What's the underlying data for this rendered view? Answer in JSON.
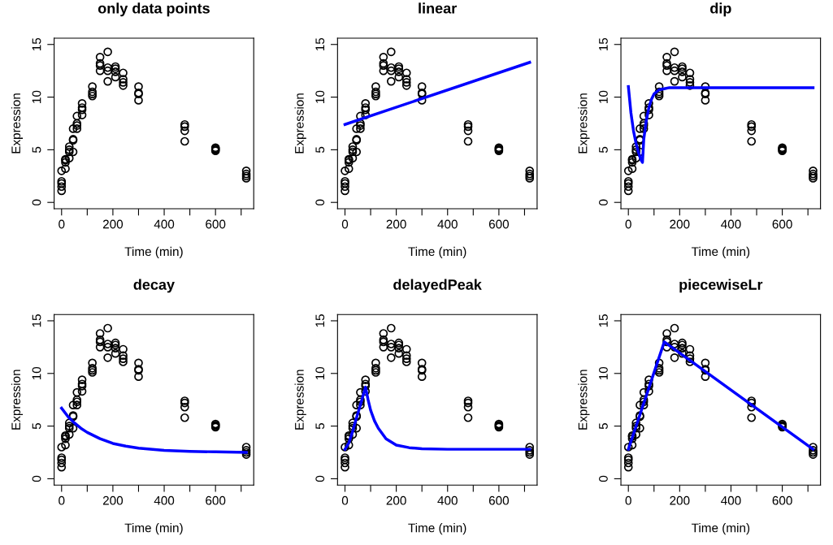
{
  "chart_data": [
    {
      "type": "scatter",
      "title": "only data points",
      "xlabel": "Time (min)",
      "ylabel": "Expression",
      "xlim": [
        -29,
        749
      ],
      "ylim": [
        -0.6,
        15.6
      ],
      "xticks": [
        0,
        {
          "value": 100,
          "label": null
        },
        200,
        {
          "value": 300,
          "label": null
        },
        400,
        {
          "value": 500,
          "label": null
        },
        600,
        {
          "value": 700,
          "label": null
        }
      ],
      "yticks": [
        0,
        5,
        10,
        15
      ],
      "grid": false,
      "series": [
        {
          "type": "scatter",
          "marker": "circle",
          "color": "#000000",
          "x": [
            0,
            0,
            0,
            0,
            0,
            15,
            15,
            15,
            15,
            30,
            30,
            30,
            30,
            45,
            45,
            45,
            45,
            60,
            60,
            60,
            60,
            80,
            80,
            80,
            80,
            120,
            120,
            120,
            120,
            150,
            150,
            150,
            150,
            180,
            180,
            180,
            180,
            210,
            210,
            210,
            210,
            240,
            240,
            240,
            240,
            300,
            300,
            300,
            300,
            480,
            480,
            480,
            480,
            600,
            600,
            600,
            600,
            720,
            720,
            720,
            720
          ],
          "values": [
            1.1,
            1.5,
            1.8,
            2.0,
            3.0,
            3.2,
            3.8,
            4.0,
            4.1,
            4.2,
            4.8,
            5.0,
            5.3,
            4.8,
            5.9,
            6.0,
            7.0,
            7.0,
            7.3,
            7.5,
            8.2,
            8.3,
            8.8,
            9.0,
            9.4,
            10.1,
            10.3,
            10.5,
            11.0,
            12.5,
            13.0,
            13.2,
            13.8,
            11.5,
            12.5,
            12.8,
            14.3,
            11.9,
            12.4,
            12.7,
            12.9,
            11.1,
            11.4,
            11.7,
            12.3,
            9.7,
            10.3,
            10.4,
            11.0,
            5.8,
            6.8,
            7.2,
            7.4,
            4.9,
            5.0,
            5.1,
            5.2,
            2.3,
            2.5,
            2.7,
            3.0
          ]
        }
      ]
    },
    {
      "type": "scatter",
      "title": "linear",
      "xlabel": "Time (min)",
      "ylabel": "Expression",
      "xlim": [
        -29,
        749
      ],
      "ylim": [
        -0.6,
        15.6
      ],
      "xticks": [
        0,
        {
          "value": 100,
          "label": null
        },
        200,
        {
          "value": 300,
          "label": null
        },
        400,
        {
          "value": 500,
          "label": null
        },
        600,
        {
          "value": 700,
          "label": null
        }
      ],
      "yticks": [
        0,
        5,
        10,
        15
      ],
      "grid": false,
      "series": [
        {
          "type": "scatter",
          "marker": "circle",
          "color": "#000000",
          "x": [
            0,
            0,
            0,
            0,
            0,
            15,
            15,
            15,
            15,
            30,
            30,
            30,
            30,
            45,
            45,
            45,
            45,
            60,
            60,
            60,
            60,
            80,
            80,
            80,
            80,
            120,
            120,
            120,
            120,
            150,
            150,
            150,
            150,
            180,
            180,
            180,
            180,
            210,
            210,
            210,
            210,
            240,
            240,
            240,
            240,
            300,
            300,
            300,
            300,
            480,
            480,
            480,
            480,
            600,
            600,
            600,
            600,
            720,
            720,
            720,
            720
          ],
          "values": [
            1.1,
            1.5,
            1.8,
            2.0,
            3.0,
            3.2,
            3.8,
            4.0,
            4.1,
            4.2,
            4.8,
            5.0,
            5.3,
            4.8,
            5.9,
            6.0,
            7.0,
            7.0,
            7.3,
            7.5,
            8.2,
            8.3,
            8.8,
            9.0,
            9.4,
            10.1,
            10.3,
            10.5,
            11.0,
            12.5,
            13.0,
            13.2,
            13.8,
            11.5,
            12.5,
            12.8,
            14.3,
            11.9,
            12.4,
            12.7,
            12.9,
            11.1,
            11.4,
            11.7,
            12.3,
            9.7,
            10.3,
            10.4,
            11.0,
            5.8,
            6.8,
            7.2,
            7.4,
            4.9,
            5.0,
            5.1,
            5.2,
            2.3,
            2.5,
            2.7,
            3.0
          ]
        },
        {
          "type": "line",
          "color": "#0000ff",
          "x": [
            0,
            720
          ],
          "values": [
            7.4,
            13.3
          ]
        }
      ]
    },
    {
      "type": "scatter",
      "title": "dip",
      "xlabel": "Time (min)",
      "ylabel": "Expression",
      "xlim": [
        -29,
        749
      ],
      "ylim": [
        -0.6,
        15.6
      ],
      "xticks": [
        0,
        {
          "value": 100,
          "label": null
        },
        200,
        {
          "value": 300,
          "label": null
        },
        400,
        {
          "value": 500,
          "label": null
        },
        600,
        {
          "value": 700,
          "label": null
        }
      ],
      "yticks": [
        0,
        5,
        10,
        15
      ],
      "grid": false,
      "series": [
        {
          "type": "scatter",
          "marker": "circle",
          "color": "#000000",
          "x": [
            0,
            0,
            0,
            0,
            0,
            15,
            15,
            15,
            15,
            30,
            30,
            30,
            30,
            45,
            45,
            45,
            45,
            60,
            60,
            60,
            60,
            80,
            80,
            80,
            80,
            120,
            120,
            120,
            120,
            150,
            150,
            150,
            150,
            180,
            180,
            180,
            180,
            210,
            210,
            210,
            210,
            240,
            240,
            240,
            240,
            300,
            300,
            300,
            300,
            480,
            480,
            480,
            480,
            600,
            600,
            600,
            600,
            720,
            720,
            720,
            720
          ],
          "values": [
            1.1,
            1.5,
            1.8,
            2.0,
            3.0,
            3.2,
            3.8,
            4.0,
            4.1,
            4.2,
            4.8,
            5.0,
            5.3,
            4.8,
            5.9,
            6.0,
            7.0,
            7.0,
            7.3,
            7.5,
            8.2,
            8.3,
            8.8,
            9.0,
            9.4,
            10.1,
            10.3,
            10.5,
            11.0,
            12.5,
            13.0,
            13.2,
            13.8,
            11.5,
            12.5,
            12.8,
            14.3,
            11.9,
            12.4,
            12.7,
            12.9,
            11.1,
            11.4,
            11.7,
            12.3,
            9.7,
            10.3,
            10.4,
            11.0,
            5.8,
            6.8,
            7.2,
            7.4,
            4.9,
            5.0,
            5.1,
            5.2,
            2.3,
            2.5,
            2.7,
            3.0
          ]
        },
        {
          "type": "line",
          "color": "#0000ff",
          "x": [
            0,
            10,
            20,
            30,
            40,
            50,
            55,
            60,
            70,
            80,
            90,
            100,
            120,
            140,
            160,
            200,
            300,
            720
          ],
          "values": [
            11.0,
            8.5,
            6.8,
            5.6,
            4.7,
            4.0,
            3.8,
            6.0,
            7.8,
            9.0,
            9.8,
            10.3,
            10.7,
            10.8,
            10.9,
            10.9,
            10.9,
            10.9
          ]
        }
      ]
    },
    {
      "type": "scatter",
      "title": "decay",
      "xlabel": "Time (min)",
      "ylabel": "Expression",
      "xlim": [
        -29,
        749
      ],
      "ylim": [
        -0.6,
        15.6
      ],
      "xticks": [
        0,
        {
          "value": 100,
          "label": null
        },
        200,
        {
          "value": 300,
          "label": null
        },
        400,
        {
          "value": 500,
          "label": null
        },
        600,
        {
          "value": 700,
          "label": null
        }
      ],
      "yticks": [
        0,
        5,
        10,
        15
      ],
      "grid": false,
      "series": [
        {
          "type": "scatter",
          "marker": "circle",
          "color": "#000000",
          "x": [
            0,
            0,
            0,
            0,
            0,
            15,
            15,
            15,
            15,
            30,
            30,
            30,
            30,
            45,
            45,
            45,
            45,
            60,
            60,
            60,
            60,
            80,
            80,
            80,
            80,
            120,
            120,
            120,
            120,
            150,
            150,
            150,
            150,
            180,
            180,
            180,
            180,
            210,
            210,
            210,
            210,
            240,
            240,
            240,
            240,
            300,
            300,
            300,
            300,
            480,
            480,
            480,
            480,
            600,
            600,
            600,
            600,
            720,
            720,
            720,
            720
          ],
          "values": [
            1.1,
            1.5,
            1.8,
            2.0,
            3.0,
            3.2,
            3.8,
            4.0,
            4.1,
            4.2,
            4.8,
            5.0,
            5.3,
            4.8,
            5.9,
            6.0,
            7.0,
            7.0,
            7.3,
            7.5,
            8.2,
            8.3,
            8.8,
            9.0,
            9.4,
            10.1,
            10.3,
            10.5,
            11.0,
            12.5,
            13.0,
            13.2,
            13.8,
            11.5,
            12.5,
            12.8,
            14.3,
            11.9,
            12.4,
            12.7,
            12.9,
            11.1,
            11.4,
            11.7,
            12.3,
            9.7,
            10.3,
            10.4,
            11.0,
            5.8,
            6.8,
            7.2,
            7.4,
            4.9,
            5.0,
            5.1,
            5.2,
            2.3,
            2.5,
            2.7,
            3.0
          ]
        },
        {
          "type": "line",
          "color": "#0000ff",
          "x": [
            0,
            25,
            50,
            75,
            100,
            150,
            200,
            250,
            300,
            400,
            500,
            600,
            720
          ],
          "values": [
            6.7,
            5.9,
            5.3,
            4.8,
            4.4,
            3.8,
            3.35,
            3.1,
            2.9,
            2.7,
            2.6,
            2.55,
            2.5
          ]
        }
      ]
    },
    {
      "type": "scatter",
      "title": "delayedPeak",
      "xlabel": "Time (min)",
      "ylabel": "Expression",
      "xlim": [
        -29,
        749
      ],
      "ylim": [
        -0.6,
        15.6
      ],
      "xticks": [
        0,
        {
          "value": 100,
          "label": null
        },
        200,
        {
          "value": 300,
          "label": null
        },
        400,
        {
          "value": 500,
          "label": null
        },
        600,
        {
          "value": 700,
          "label": null
        }
      ],
      "yticks": [
        0,
        5,
        10,
        15
      ],
      "grid": false,
      "series": [
        {
          "type": "scatter",
          "marker": "circle",
          "color": "#000000",
          "x": [
            0,
            0,
            0,
            0,
            0,
            15,
            15,
            15,
            15,
            30,
            30,
            30,
            30,
            45,
            45,
            45,
            45,
            60,
            60,
            60,
            60,
            80,
            80,
            80,
            80,
            120,
            120,
            120,
            120,
            150,
            150,
            150,
            150,
            180,
            180,
            180,
            180,
            210,
            210,
            210,
            210,
            240,
            240,
            240,
            240,
            300,
            300,
            300,
            300,
            480,
            480,
            480,
            480,
            600,
            600,
            600,
            600,
            720,
            720,
            720,
            720
          ],
          "values": [
            1.1,
            1.5,
            1.8,
            2.0,
            3.0,
            3.2,
            3.8,
            4.0,
            4.1,
            4.2,
            4.8,
            5.0,
            5.3,
            4.8,
            5.9,
            6.0,
            7.0,
            7.0,
            7.3,
            7.5,
            8.2,
            8.3,
            8.8,
            9.0,
            9.4,
            10.1,
            10.3,
            10.5,
            11.0,
            12.5,
            13.0,
            13.2,
            13.8,
            11.5,
            12.5,
            12.8,
            14.3,
            11.9,
            12.4,
            12.7,
            12.9,
            11.1,
            11.4,
            11.7,
            12.3,
            9.7,
            10.3,
            10.4,
            11.0,
            5.8,
            6.8,
            7.2,
            7.4,
            4.9,
            5.0,
            5.1,
            5.2,
            2.3,
            2.5,
            2.7,
            3.0
          ]
        },
        {
          "type": "line",
          "color": "#0000ff",
          "x": [
            0,
            15,
            30,
            45,
            60,
            80,
            90,
            100,
            115,
            130,
            160,
            200,
            250,
            300,
            400,
            720
          ],
          "values": [
            2.8,
            3.4,
            4.5,
            5.8,
            7.0,
            8.7,
            7.5,
            6.5,
            5.5,
            4.8,
            3.8,
            3.2,
            2.95,
            2.85,
            2.8,
            2.8
          ]
        }
      ]
    },
    {
      "type": "scatter",
      "title": "piecewiseLr",
      "xlabel": "Time (min)",
      "ylabel": "Expression",
      "xlim": [
        -29,
        749
      ],
      "ylim": [
        -0.6,
        15.6
      ],
      "xticks": [
        0,
        {
          "value": 100,
          "label": null
        },
        200,
        {
          "value": 300,
          "label": null
        },
        400,
        {
          "value": 500,
          "label": null
        },
        600,
        {
          "value": 700,
          "label": null
        }
      ],
      "yticks": [
        0,
        5,
        10,
        15
      ],
      "grid": false,
      "series": [
        {
          "type": "scatter",
          "marker": "circle",
          "color": "#000000",
          "x": [
            0,
            0,
            0,
            0,
            0,
            15,
            15,
            15,
            15,
            30,
            30,
            30,
            30,
            45,
            45,
            45,
            45,
            60,
            60,
            60,
            60,
            80,
            80,
            80,
            80,
            120,
            120,
            120,
            120,
            150,
            150,
            150,
            150,
            180,
            180,
            180,
            180,
            210,
            210,
            210,
            210,
            240,
            240,
            240,
            240,
            300,
            300,
            300,
            300,
            480,
            480,
            480,
            480,
            600,
            600,
            600,
            600,
            720,
            720,
            720,
            720
          ],
          "values": [
            1.1,
            1.5,
            1.8,
            2.0,
            3.0,
            3.2,
            3.8,
            4.0,
            4.1,
            4.2,
            4.8,
            5.0,
            5.3,
            4.8,
            5.9,
            6.0,
            7.0,
            7.0,
            7.3,
            7.5,
            8.2,
            8.3,
            8.8,
            9.0,
            9.4,
            10.1,
            10.3,
            10.5,
            11.0,
            12.5,
            13.0,
            13.2,
            13.8,
            11.5,
            12.5,
            12.8,
            14.3,
            11.9,
            12.4,
            12.7,
            12.9,
            11.1,
            11.4,
            11.7,
            12.3,
            9.7,
            10.3,
            10.4,
            11.0,
            5.8,
            6.8,
            7.2,
            7.4,
            4.9,
            5.0,
            5.1,
            5.2,
            2.3,
            2.5,
            2.7,
            3.0
          ]
        },
        {
          "type": "line",
          "color": "#0000ff",
          "x": [
            0,
            140,
            720
          ],
          "values": [
            2.8,
            13.0,
            2.8
          ]
        }
      ]
    }
  ]
}
